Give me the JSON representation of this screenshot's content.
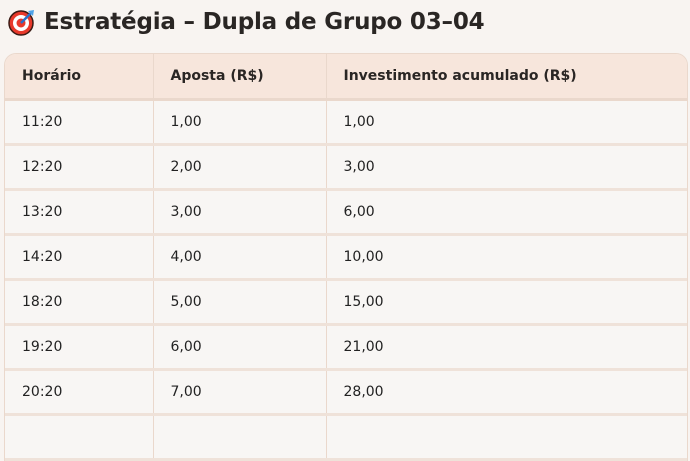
{
  "header": {
    "icon": "target-dart-icon",
    "title": "Estratégia – Dupla de Grupo 03–04"
  },
  "table": {
    "columns": [
      "Horário",
      "Aposta (R$)",
      "Investimento acumulado (R$)"
    ],
    "rows": [
      [
        "11:20",
        "1,00",
        "1,00"
      ],
      [
        "12:20",
        "2,00",
        "3,00"
      ],
      [
        "13:20",
        "3,00",
        "6,00"
      ],
      [
        "14:20",
        "4,00",
        "10,00"
      ],
      [
        "18:20",
        "5,00",
        "15,00"
      ],
      [
        "19:20",
        "6,00",
        "21,00"
      ],
      [
        "20:20",
        "7,00",
        "28,00"
      ]
    ]
  },
  "colors": {
    "header_bg": "#f7e6dc",
    "border": "#ead8cc",
    "page_bg": "#f8f4f1"
  }
}
